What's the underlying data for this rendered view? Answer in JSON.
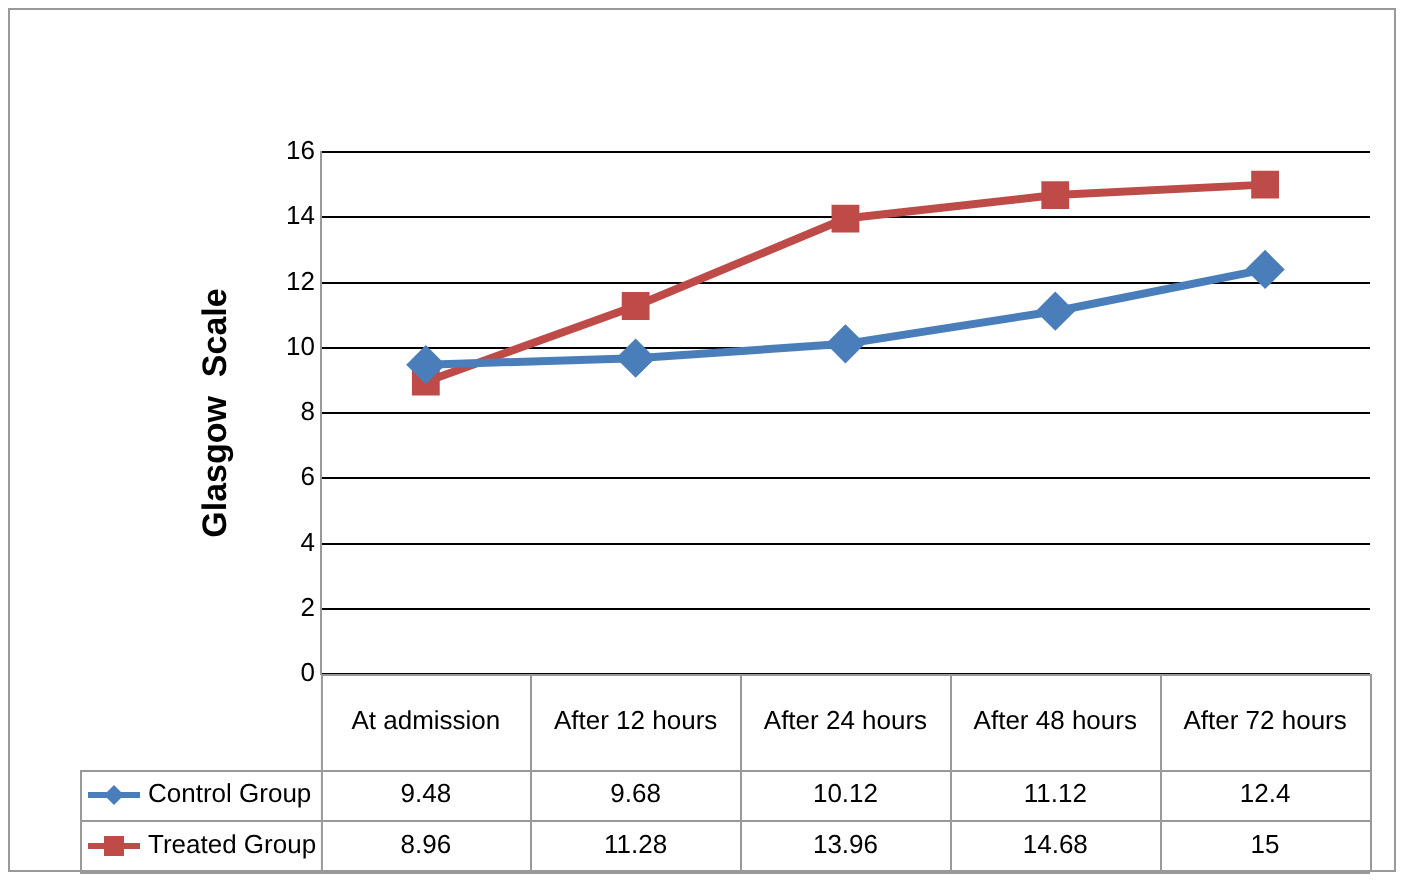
{
  "chart_data": {
    "type": "line",
    "ylabel": "Glasgow  Scale",
    "categories": [
      "At admission",
      "After 12 hours",
      "After 24 hours",
      "After 48 hours",
      "After 72 hours"
    ],
    "series": [
      {
        "name": "Control Group",
        "color": "#4a7ebb",
        "marker": "diamond",
        "values": [
          9.48,
          9.68,
          10.12,
          11.12,
          12.4
        ]
      },
      {
        "name": "Treated Group",
        "color": "#be4b48",
        "marker": "square",
        "values": [
          8.96,
          11.28,
          13.96,
          14.68,
          15
        ]
      }
    ],
    "ylim": [
      0,
      16
    ],
    "yticks": [
      0,
      2,
      4,
      6,
      8,
      10,
      12,
      14,
      16
    ],
    "grid": "y",
    "legend": "bottom",
    "data_labels": true
  }
}
